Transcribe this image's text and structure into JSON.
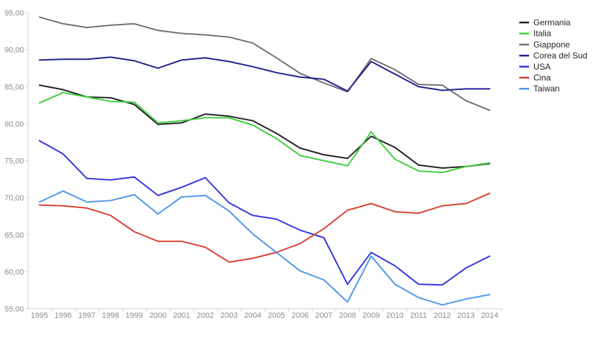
{
  "chart_data": {
    "type": "line",
    "title": "",
    "xlabel": "",
    "ylabel": "",
    "x": [
      "1995",
      "1996",
      "1997",
      "1998",
      "1999",
      "2000",
      "2001",
      "2002",
      "2003",
      "2004",
      "2005",
      "2006",
      "2007",
      "2008",
      "2009",
      "2010",
      "2011",
      "2012",
      "2013",
      "2014"
    ],
    "ylim": [
      55,
      95
    ],
    "yticks": [
      "55,00",
      "60,00",
      "65,00",
      "70,00",
      "75,00",
      "80,00",
      "85,00",
      "90,00",
      "95,00"
    ],
    "grid": false,
    "legend_position": "top-right",
    "series": [
      {
        "name": "Germania",
        "color": "#222222",
        "values": [
          85.2,
          84.6,
          83.6,
          83.5,
          82.6,
          79.9,
          80.1,
          81.3,
          81.0,
          80.4,
          78.7,
          76.7,
          75.8,
          75.3,
          78.3,
          76.8,
          74.4,
          74.0,
          74.2,
          74.6
        ]
      },
      {
        "name": "Italia",
        "color": "#3fcf3f",
        "values": [
          82.8,
          84.2,
          83.6,
          83.0,
          82.9,
          80.1,
          80.4,
          80.8,
          80.8,
          79.8,
          78.0,
          75.7,
          75.0,
          74.3,
          78.9,
          75.2,
          73.6,
          73.4,
          74.2,
          74.7
        ]
      },
      {
        "name": "Giappone",
        "color": "#707070",
        "values": [
          94.4,
          93.5,
          93.0,
          93.3,
          93.5,
          92.6,
          92.2,
          92.0,
          91.7,
          90.9,
          88.9,
          86.8,
          85.5,
          84.3,
          88.8,
          87.3,
          85.3,
          85.2,
          83.1,
          81.8
        ]
      },
      {
        "name": "Corea del Sud",
        "color": "#1f1f8f",
        "values": [
          88.6,
          88.7,
          88.7,
          89.0,
          88.5,
          87.5,
          88.6,
          88.9,
          88.4,
          87.7,
          86.9,
          86.3,
          86.0,
          84.4,
          88.4,
          86.7,
          85.0,
          84.5,
          84.7,
          84.7
        ]
      },
      {
        "name": "USA",
        "color": "#3434e0",
        "values": [
          77.7,
          75.9,
          72.6,
          72.4,
          72.8,
          70.3,
          71.4,
          72.7,
          69.3,
          67.6,
          67.1,
          65.6,
          64.6,
          58.3,
          62.6,
          60.8,
          58.3,
          58.2,
          60.5,
          62.1
        ]
      },
      {
        "name": "Cina",
        "color": "#d94030",
        "values": [
          69.0,
          68.9,
          68.6,
          67.6,
          65.4,
          64.1,
          64.1,
          63.3,
          61.3,
          61.8,
          62.6,
          63.8,
          65.8,
          68.3,
          69.2,
          68.1,
          67.9,
          68.9,
          69.2,
          70.6
        ]
      },
      {
        "name": "Taiwan",
        "color": "#4e97e8",
        "values": [
          69.4,
          70.9,
          69.4,
          69.6,
          70.4,
          67.8,
          70.1,
          70.3,
          68.2,
          65.1,
          62.6,
          60.1,
          58.9,
          55.9,
          62.1,
          58.3,
          56.5,
          55.5,
          56.3,
          56.9
        ]
      }
    ]
  }
}
